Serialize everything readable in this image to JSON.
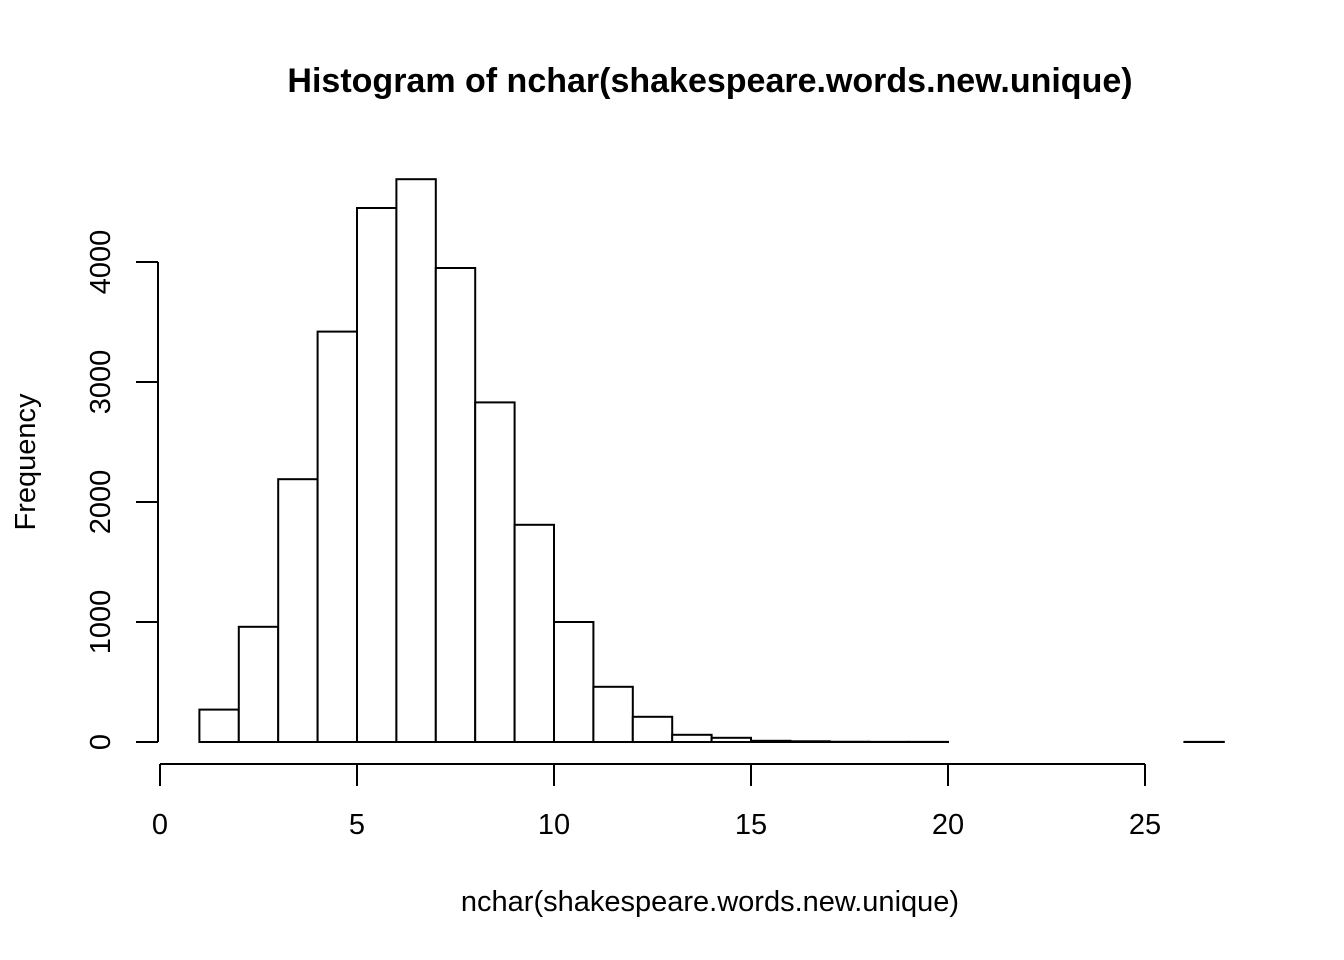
{
  "chart_data": {
    "type": "bar",
    "title": "Histogram of nchar(shakespeare.words.new.unique)",
    "xlabel": "nchar(shakespeare.words.new.unique)",
    "ylabel": "Frequency",
    "bins": [
      {
        "from": 1,
        "to": 2,
        "count": 270
      },
      {
        "from": 2,
        "to": 3,
        "count": 960
      },
      {
        "from": 3,
        "to": 4,
        "count": 2190
      },
      {
        "from": 4,
        "to": 5,
        "count": 3420
      },
      {
        "from": 5,
        "to": 6,
        "count": 4450
      },
      {
        "from": 6,
        "to": 7,
        "count": 4690
      },
      {
        "from": 7,
        "to": 8,
        "count": 3950
      },
      {
        "from": 8,
        "to": 9,
        "count": 2830
      },
      {
        "from": 9,
        "to": 10,
        "count": 1810
      },
      {
        "from": 10,
        "to": 11,
        "count": 1000
      },
      {
        "from": 11,
        "to": 12,
        "count": 460
      },
      {
        "from": 12,
        "to": 13,
        "count": 210
      },
      {
        "from": 13,
        "to": 14,
        "count": 60
      },
      {
        "from": 14,
        "to": 15,
        "count": 35
      },
      {
        "from": 15,
        "to": 16,
        "count": 10
      },
      {
        "from": 16,
        "to": 17,
        "count": 6
      },
      {
        "from": 17,
        "to": 18,
        "count": 2
      },
      {
        "from": 18,
        "to": 19,
        "count": 1
      },
      {
        "from": 19,
        "to": 20,
        "count": 1
      },
      {
        "from": 20,
        "to": 21,
        "count": 0
      },
      {
        "from": 21,
        "to": 22,
        "count": 0
      },
      {
        "from": 22,
        "to": 23,
        "count": 0
      },
      {
        "from": 23,
        "to": 24,
        "count": 0
      },
      {
        "from": 24,
        "to": 25,
        "count": 0
      },
      {
        "from": 25,
        "to": 26,
        "count": 0
      },
      {
        "from": 26,
        "to": 27,
        "count": 1
      }
    ],
    "xlim": [
      0,
      27
    ],
    "ylim": [
      0,
      4800
    ],
    "x_ticks": [
      0,
      5,
      10,
      15,
      20,
      25
    ],
    "x_tick_labels": [
      "0",
      "5",
      "10",
      "15",
      "20",
      "25"
    ],
    "y_ticks": [
      0,
      1000,
      2000,
      3000,
      4000
    ],
    "y_tick_labels": [
      "0",
      "1000",
      "2000",
      "3000",
      "4000"
    ],
    "grid": false,
    "bar_fill": "#ffffff",
    "bar_stroke": "#000000"
  }
}
